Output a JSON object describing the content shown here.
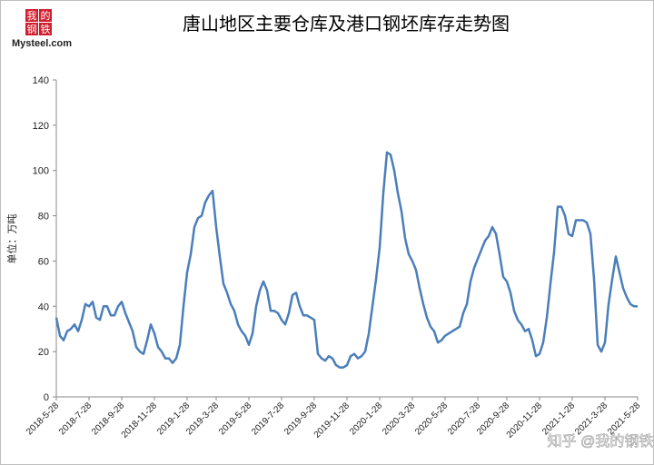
{
  "chart_data": {
    "type": "line",
    "title": "唐山地区主要仓库及港口钢坯库存走势图",
    "y_label": "单位：万吨",
    "ylim": [
      0,
      140
    ],
    "yticks": [
      0,
      20,
      40,
      60,
      80,
      100,
      120,
      140
    ],
    "categories": [
      "2018-5-28",
      null,
      null,
      null,
      null,
      null,
      null,
      null,
      null,
      "2018-7-28",
      null,
      null,
      null,
      null,
      null,
      null,
      null,
      null,
      "2018-9-28",
      null,
      null,
      null,
      null,
      null,
      null,
      null,
      null,
      "2018-11-28",
      null,
      null,
      null,
      null,
      null,
      null,
      null,
      null,
      "2019-1-28",
      null,
      null,
      null,
      null,
      null,
      null,
      null,
      "2019-3-28",
      null,
      null,
      null,
      null,
      null,
      null,
      null,
      null,
      "2019-5-28",
      null,
      null,
      null,
      null,
      null,
      null,
      null,
      null,
      "2019-7-28",
      null,
      null,
      null,
      null,
      null,
      null,
      null,
      null,
      "2019-9-28",
      null,
      null,
      null,
      null,
      null,
      null,
      null,
      null,
      "2019-11-28",
      null,
      null,
      null,
      null,
      null,
      null,
      null,
      null,
      "2020-1-28",
      null,
      null,
      null,
      null,
      null,
      null,
      null,
      null,
      "2020-3-28",
      null,
      null,
      null,
      null,
      null,
      null,
      null,
      null,
      "2020-5-28",
      null,
      null,
      null,
      null,
      null,
      null,
      null,
      null,
      "2020-7-28",
      null,
      null,
      null,
      null,
      null,
      null,
      null,
      "2020-9-28",
      null,
      null,
      null,
      null,
      null,
      null,
      null,
      null,
      "2020-11-28",
      null,
      null,
      null,
      null,
      null,
      null,
      null,
      null,
      "2021-1-28",
      null,
      null,
      null,
      null,
      null,
      null,
      null,
      null,
      "2021-3-28",
      null,
      null,
      null,
      null,
      null,
      null,
      null,
      null,
      "2021-5-28"
    ],
    "series": [
      {
        "color": "#4a7ebb",
        "values": [
          35,
          27,
          25,
          29,
          30,
          32,
          29,
          34,
          41,
          40,
          42,
          35,
          34,
          40,
          40,
          36,
          36,
          40,
          42,
          37,
          33,
          29,
          22,
          20,
          19,
          25,
          32,
          28,
          22,
          20,
          17,
          17,
          15,
          17,
          23,
          40,
          55,
          63,
          75,
          79,
          80,
          86,
          89,
          91,
          75,
          62,
          50,
          46,
          41,
          38,
          32,
          29,
          27,
          23,
          28,
          40,
          47,
          51,
          47,
          38,
          38,
          37,
          34,
          32,
          37,
          45,
          46,
          40,
          36,
          36,
          35,
          34,
          19,
          17,
          16,
          18,
          17,
          14,
          13,
          13,
          14,
          18,
          19,
          17,
          18,
          20,
          28,
          40,
          52,
          66,
          90,
          108,
          107,
          100,
          90,
          82,
          70,
          63,
          60,
          56,
          48,
          41,
          35,
          31,
          29,
          24,
          25,
          27,
          28,
          29,
          30,
          31,
          37,
          41,
          51,
          57,
          61,
          65,
          69,
          71,
          75,
          72,
          63,
          53,
          51,
          46,
          38,
          34,
          32,
          29,
          30,
          25,
          18,
          19,
          24,
          35,
          50,
          64,
          84,
          84,
          80,
          72,
          71,
          78,
          78,
          78,
          77,
          72,
          52,
          23,
          20,
          24,
          41,
          52,
          62,
          55,
          48,
          44,
          41,
          40,
          40
        ]
      }
    ]
  },
  "logo": {
    "chars": [
      "我",
      "的",
      "钢",
      "铁"
    ],
    "site": "Mysteel.com"
  },
  "watermark": "知乎 @我的钢铁"
}
